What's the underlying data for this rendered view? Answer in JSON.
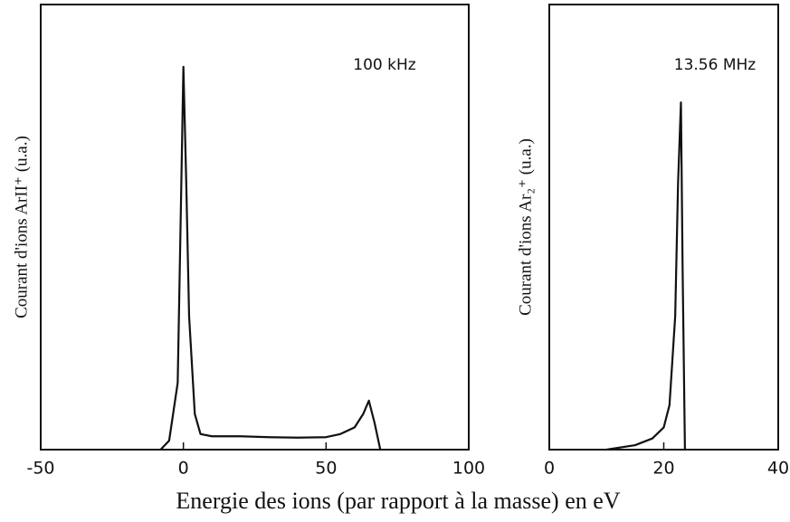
{
  "xlabel": "Energie des ions (par rapport à la masse) en eV",
  "chart_data": [
    {
      "type": "line",
      "ylabel": "Courant d'ions ArII⁺ (u.a.)",
      "annotation": "100 kHz",
      "xlim": [
        -50,
        100
      ],
      "xticks": [
        -50,
        0,
        50,
        100
      ],
      "ylim": [
        0,
        100
      ],
      "series": [
        {
          "color": "#111111",
          "x": [
            -8,
            -5,
            -2,
            -1,
            0,
            1,
            2,
            4,
            6,
            10,
            20,
            30,
            40,
            50,
            55,
            60,
            63,
            65,
            67,
            69
          ],
          "values": [
            0,
            2,
            15,
            50,
            86,
            60,
            30,
            8,
            3.5,
            3,
            3,
            2.8,
            2.7,
            2.8,
            3.5,
            5,
            8,
            11,
            6,
            0
          ]
        }
      ]
    },
    {
      "type": "line",
      "ylabel": "Courant d'ions Ar₂⁺ (u.a.)",
      "annotation": "13.56 MHz",
      "xlim": [
        0,
        40
      ],
      "xticks": [
        0,
        20,
        40
      ],
      "ylim": [
        0,
        100
      ],
      "series": [
        {
          "color": "#111111",
          "x": [
            10,
            15,
            18,
            20,
            21,
            22,
            22.5,
            23,
            23.3,
            23.7
          ],
          "values": [
            0,
            1,
            2.5,
            5,
            10,
            30,
            60,
            78,
            40,
            0
          ]
        }
      ]
    }
  ]
}
